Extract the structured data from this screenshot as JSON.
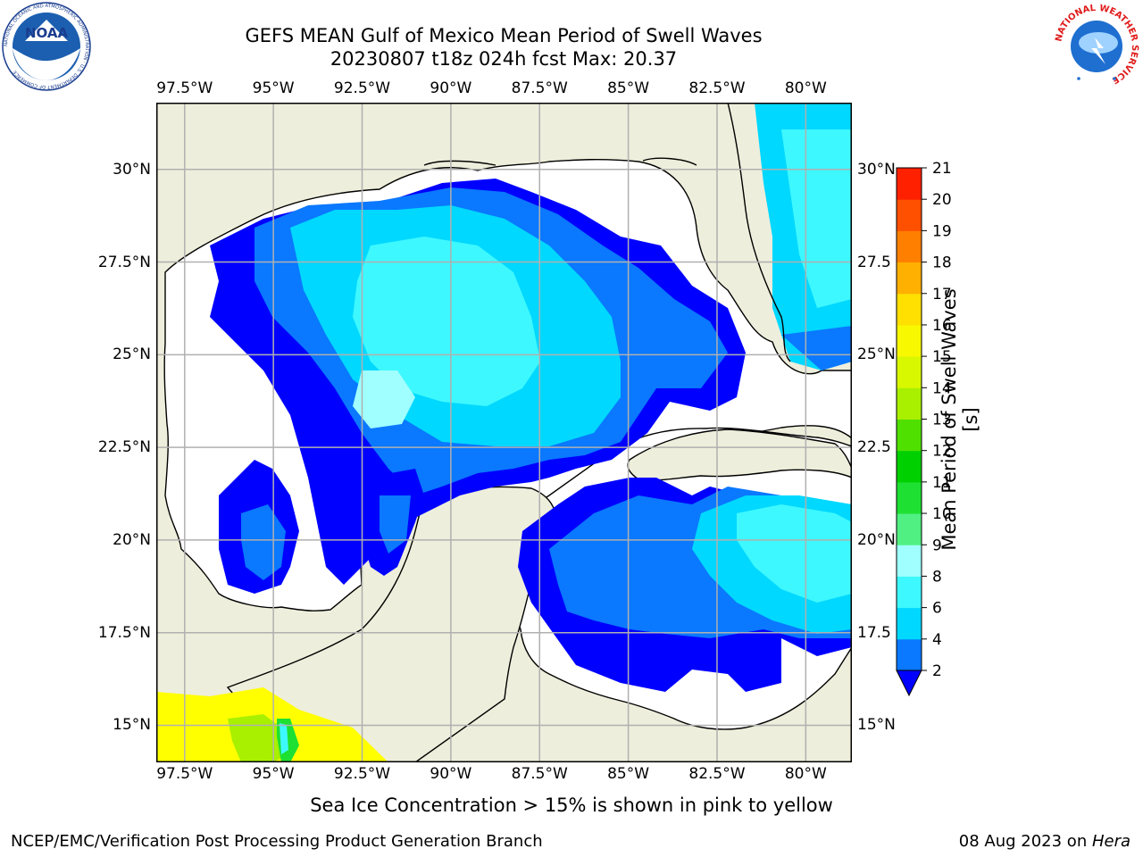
{
  "title_line1": "GEFS MEAN Gulf of Mexico Mean Period of Swell Waves",
  "title_line2": "20230807 t18z 024h fcst   Max: 20.37",
  "colorbar_label": "Mean Period of Swell Waves [s]",
  "footnote": "Sea Ice Concentration > 15% is shown in pink to yellow",
  "footer_left": "NCEP/EMC/Verification Post Processing Product Generation Branch",
  "footer_date": "08 Aug 2023 on ",
  "footer_machine": "Hera",
  "logos": {
    "noaa_text": "NOAA",
    "noaa_ring_text": "NATIONAL OCEANIC AND ATMOSPHERIC ADMINISTRATION · U.S. DEPARTMENT OF COMMERCE",
    "nws_ring_text": "NATIONAL WEATHER SERVICE"
  },
  "lon_labels": [
    "97.5°W",
    "95°W",
    "92.5°W",
    "90°W",
    "87.5°W",
    "85°W",
    "82.5°W",
    "80°W"
  ],
  "lat_labels_left": [
    "30°N",
    "27.5°N",
    "25°N",
    "22.5°N",
    "20°N",
    "17.5°N",
    "15°N"
  ],
  "lat_labels_right": [
    "30°N",
    "27.5",
    "25°N",
    "22.5",
    "20°N",
    "17.5",
    "15°N"
  ],
  "colorbar": {
    "ticks": [
      "2",
      "4",
      "6",
      "8",
      "9",
      "10",
      "11",
      "12",
      "13",
      "14",
      "15",
      "16",
      "17",
      "18",
      "19",
      "20",
      "21"
    ],
    "colors": [
      "#0a78ff",
      "#00d8ff",
      "#3ef8ff",
      "#a0ffff",
      "#50f082",
      "#1ee032",
      "#00d000",
      "#50e000",
      "#a8f000",
      "#d8f800",
      "#f8f800",
      "#ffe000",
      "#ffb000",
      "#ff8000",
      "#ff5000",
      "#ff2000"
    ],
    "extend_color": "#0000ff"
  },
  "chart_data": {
    "type": "heatmap",
    "title": "GEFS MEAN Gulf of Mexico Mean Period of Swell Waves",
    "subtitle": "20230807 t18z 024h fcst   Max: 20.37",
    "variable": "Mean Period of Swell Waves [s]",
    "max": 20.37,
    "xlim": [
      -98.3,
      -78.7
    ],
    "ylim": [
      14.0,
      31.8
    ],
    "colorbar_ticks": [
      2,
      4,
      6,
      8,
      9,
      10,
      11,
      12,
      13,
      14,
      15,
      16,
      17,
      18,
      19,
      20,
      21
    ],
    "colorbar_extend": "min",
    "grid": true,
    "land_color": "#eeeedc",
    "ocean_field_colors": {
      "lt2": "#0000ff",
      "2-4": "#0a78ff",
      "4-6": "#00d8ff",
      "6-8": "#3ef8ff",
      "8-9": "#a0ffff"
    }
  }
}
